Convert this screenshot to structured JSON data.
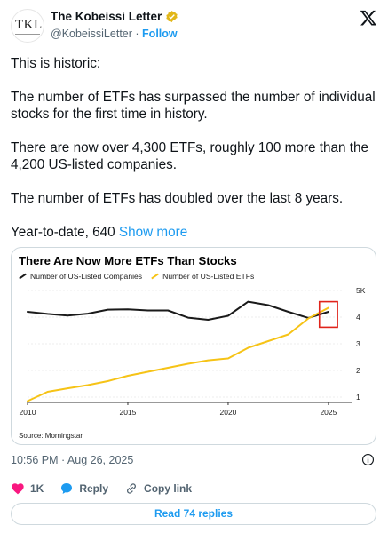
{
  "account": {
    "avatar_text": "TKL",
    "display_name": "The Kobeissi Letter",
    "handle": "@KobeissiLetter",
    "separator": "·",
    "follow_label": "Follow"
  },
  "tweet": {
    "paragraphs": [
      "This is historic:",
      "The number of ETFs has surpassed the number of individual stocks for the first time in history.",
      "There are now over 4,300 ETFs, roughly 100 more than the 4,200 US-listed companies.",
      "The number of ETFs has doubled over the last 8 years."
    ],
    "last_line": "Year-to-date, 640",
    "show_more": "Show more"
  },
  "chart_data": {
    "type": "line",
    "title": "There Are Now More ETFs Than Stocks",
    "source": "Source: Morningstar",
    "xlim": [
      2010,
      2025.8
    ],
    "ylim": [
      0.8,
      5
    ],
    "x_ticks": [
      "2010",
      "2015",
      "2020",
      "2025"
    ],
    "y_ticks": [
      "5K",
      "4",
      "3",
      "2",
      "1"
    ],
    "series": [
      {
        "name": "Number of US-Listed Companies",
        "color": "#1a1a1a",
        "points": [
          [
            2010,
            4.2
          ],
          [
            2011,
            4.12
          ],
          [
            2012,
            4.06
          ],
          [
            2013,
            4.13
          ],
          [
            2014,
            4.28
          ],
          [
            2015,
            4.29
          ],
          [
            2016,
            4.25
          ],
          [
            2017,
            4.25
          ],
          [
            2018,
            3.98
          ],
          [
            2019,
            3.9
          ],
          [
            2020,
            4.05
          ],
          [
            2021,
            4.58
          ],
          [
            2022,
            4.45
          ],
          [
            2023,
            4.2
          ],
          [
            2024,
            3.97
          ],
          [
            2025,
            4.2
          ]
        ]
      },
      {
        "name": "Number of US-Listed ETFs",
        "color": "#f6c316",
        "points": [
          [
            2010,
            0.85
          ],
          [
            2011,
            1.2
          ],
          [
            2012,
            1.33
          ],
          [
            2013,
            1.45
          ],
          [
            2014,
            1.6
          ],
          [
            2015,
            1.8
          ],
          [
            2016,
            1.95
          ],
          [
            2017,
            2.1
          ],
          [
            2018,
            2.25
          ],
          [
            2019,
            2.38
          ],
          [
            2020,
            2.45
          ],
          [
            2021,
            2.85
          ],
          [
            2022,
            3.1
          ],
          [
            2023,
            3.35
          ],
          [
            2024,
            3.95
          ],
          [
            2025,
            4.35
          ]
        ]
      }
    ],
    "highlight_color": "#e0241b"
  },
  "meta": {
    "timestamp": "10:56 PM · Aug 26, 2025"
  },
  "actions": {
    "likes": "1K",
    "reply_label": "Reply",
    "copy_link_label": "Copy link",
    "read_replies_label": "Read 74 replies"
  },
  "colors": {
    "accent": "#1d9bf0",
    "like": "#f91880",
    "verified_gold": "#e2b719"
  }
}
